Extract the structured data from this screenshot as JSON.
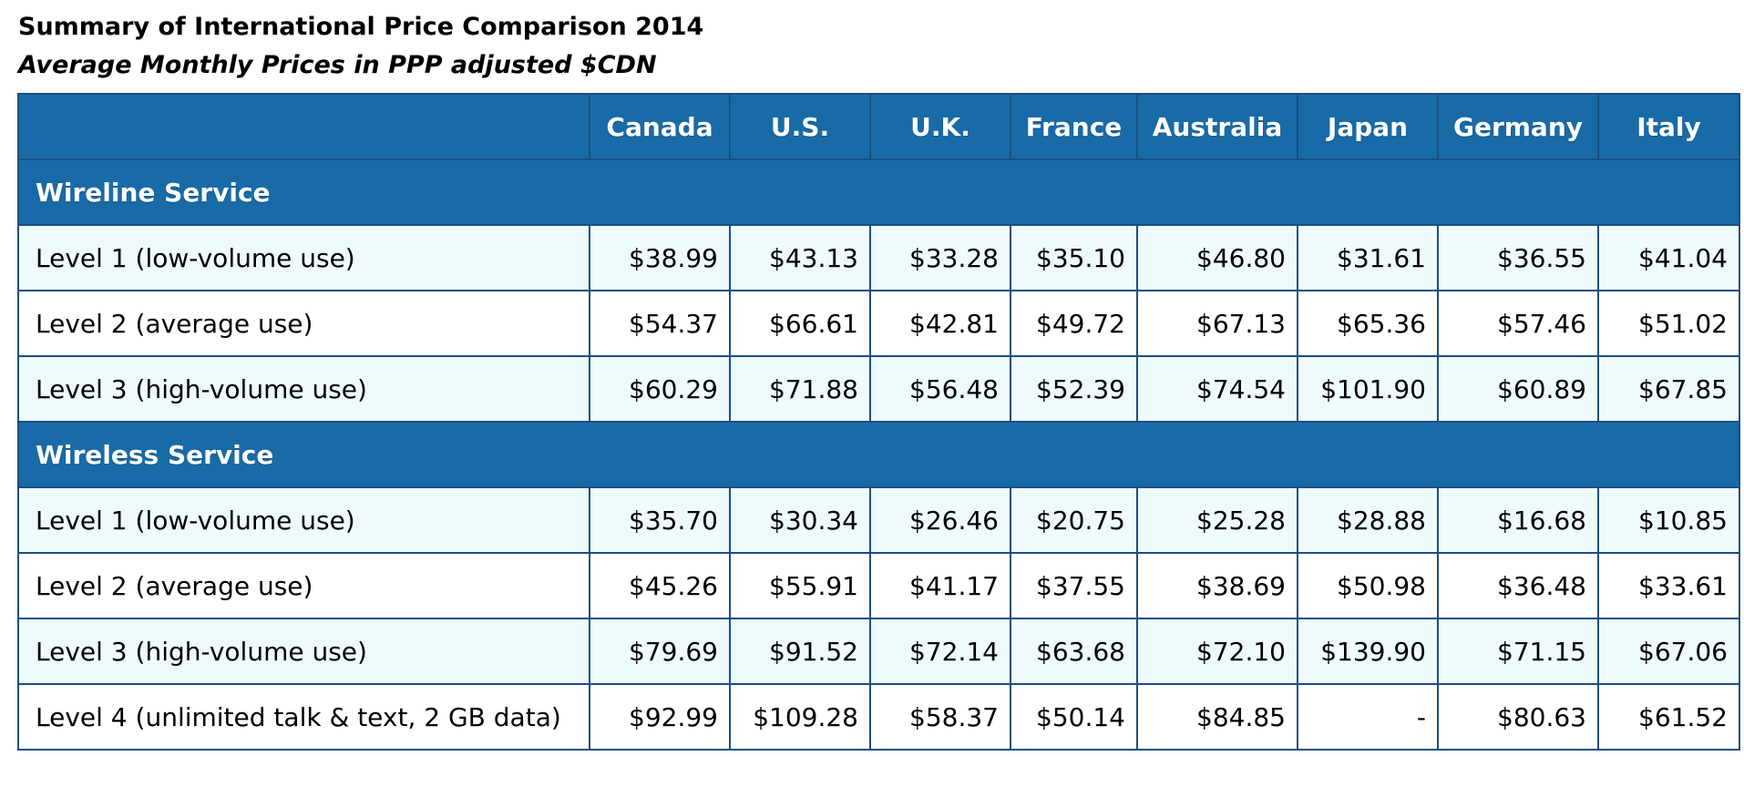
{
  "title": "Summary of International Price Comparison 2014",
  "subtitle": "Average Monthly Prices in PPP adjusted $CDN",
  "colors": {
    "header_bg": "#186ba7",
    "header_text": "#ffffff",
    "border": "#1a4f80",
    "row_shade": "#eefafb",
    "row_plain": "#ffffff"
  },
  "table": {
    "corner": "",
    "columns": [
      "Canada",
      "U.S.",
      "U.K.",
      "France",
      "Australia",
      "Japan",
      "Germany",
      "Italy"
    ],
    "sections": [
      {
        "name": "Wireline Service",
        "rows": [
          {
            "label": "Level 1 (low-volume use)",
            "values": [
              "$38.99",
              "$43.13",
              "$33.28",
              "$35.10",
              "$46.80",
              "$31.61",
              "$36.55",
              "$41.04"
            ]
          },
          {
            "label": "Level 2 (average use)",
            "values": [
              "$54.37",
              "$66.61",
              "$42.81",
              "$49.72",
              "$67.13",
              "$65.36",
              "$57.46",
              "$51.02"
            ]
          },
          {
            "label": "Level 3 (high-volume use)",
            "values": [
              "$60.29",
              "$71.88",
              "$56.48",
              "$52.39",
              "$74.54",
              "$101.90",
              "$60.89",
              "$67.85"
            ]
          }
        ]
      },
      {
        "name": "Wireless Service",
        "rows": [
          {
            "label": "Level 1 (low-volume use)",
            "values": [
              "$35.70",
              "$30.34",
              "$26.46",
              "$20.75",
              "$25.28",
              "$28.88",
              "$16.68",
              "$10.85"
            ]
          },
          {
            "label": "Level 2 (average use)",
            "values": [
              "$45.26",
              "$55.91",
              "$41.17",
              "$37.55",
              "$38.69",
              "$50.98",
              "$36.48",
              "$33.61"
            ]
          },
          {
            "label": "Level 3 (high-volume use)",
            "values": [
              "$79.69",
              "$91.52",
              "$72.14",
              "$63.68",
              "$72.10",
              "$139.90",
              "$71.15",
              "$67.06"
            ]
          },
          {
            "label": "Level 4 (unlimited talk & text, 2 GB data)",
            "values": [
              "$92.99",
              "$109.28",
              "$58.37",
              "$50.14",
              "$84.85",
              "-",
              "$80.63",
              "$61.52"
            ]
          }
        ]
      }
    ]
  }
}
